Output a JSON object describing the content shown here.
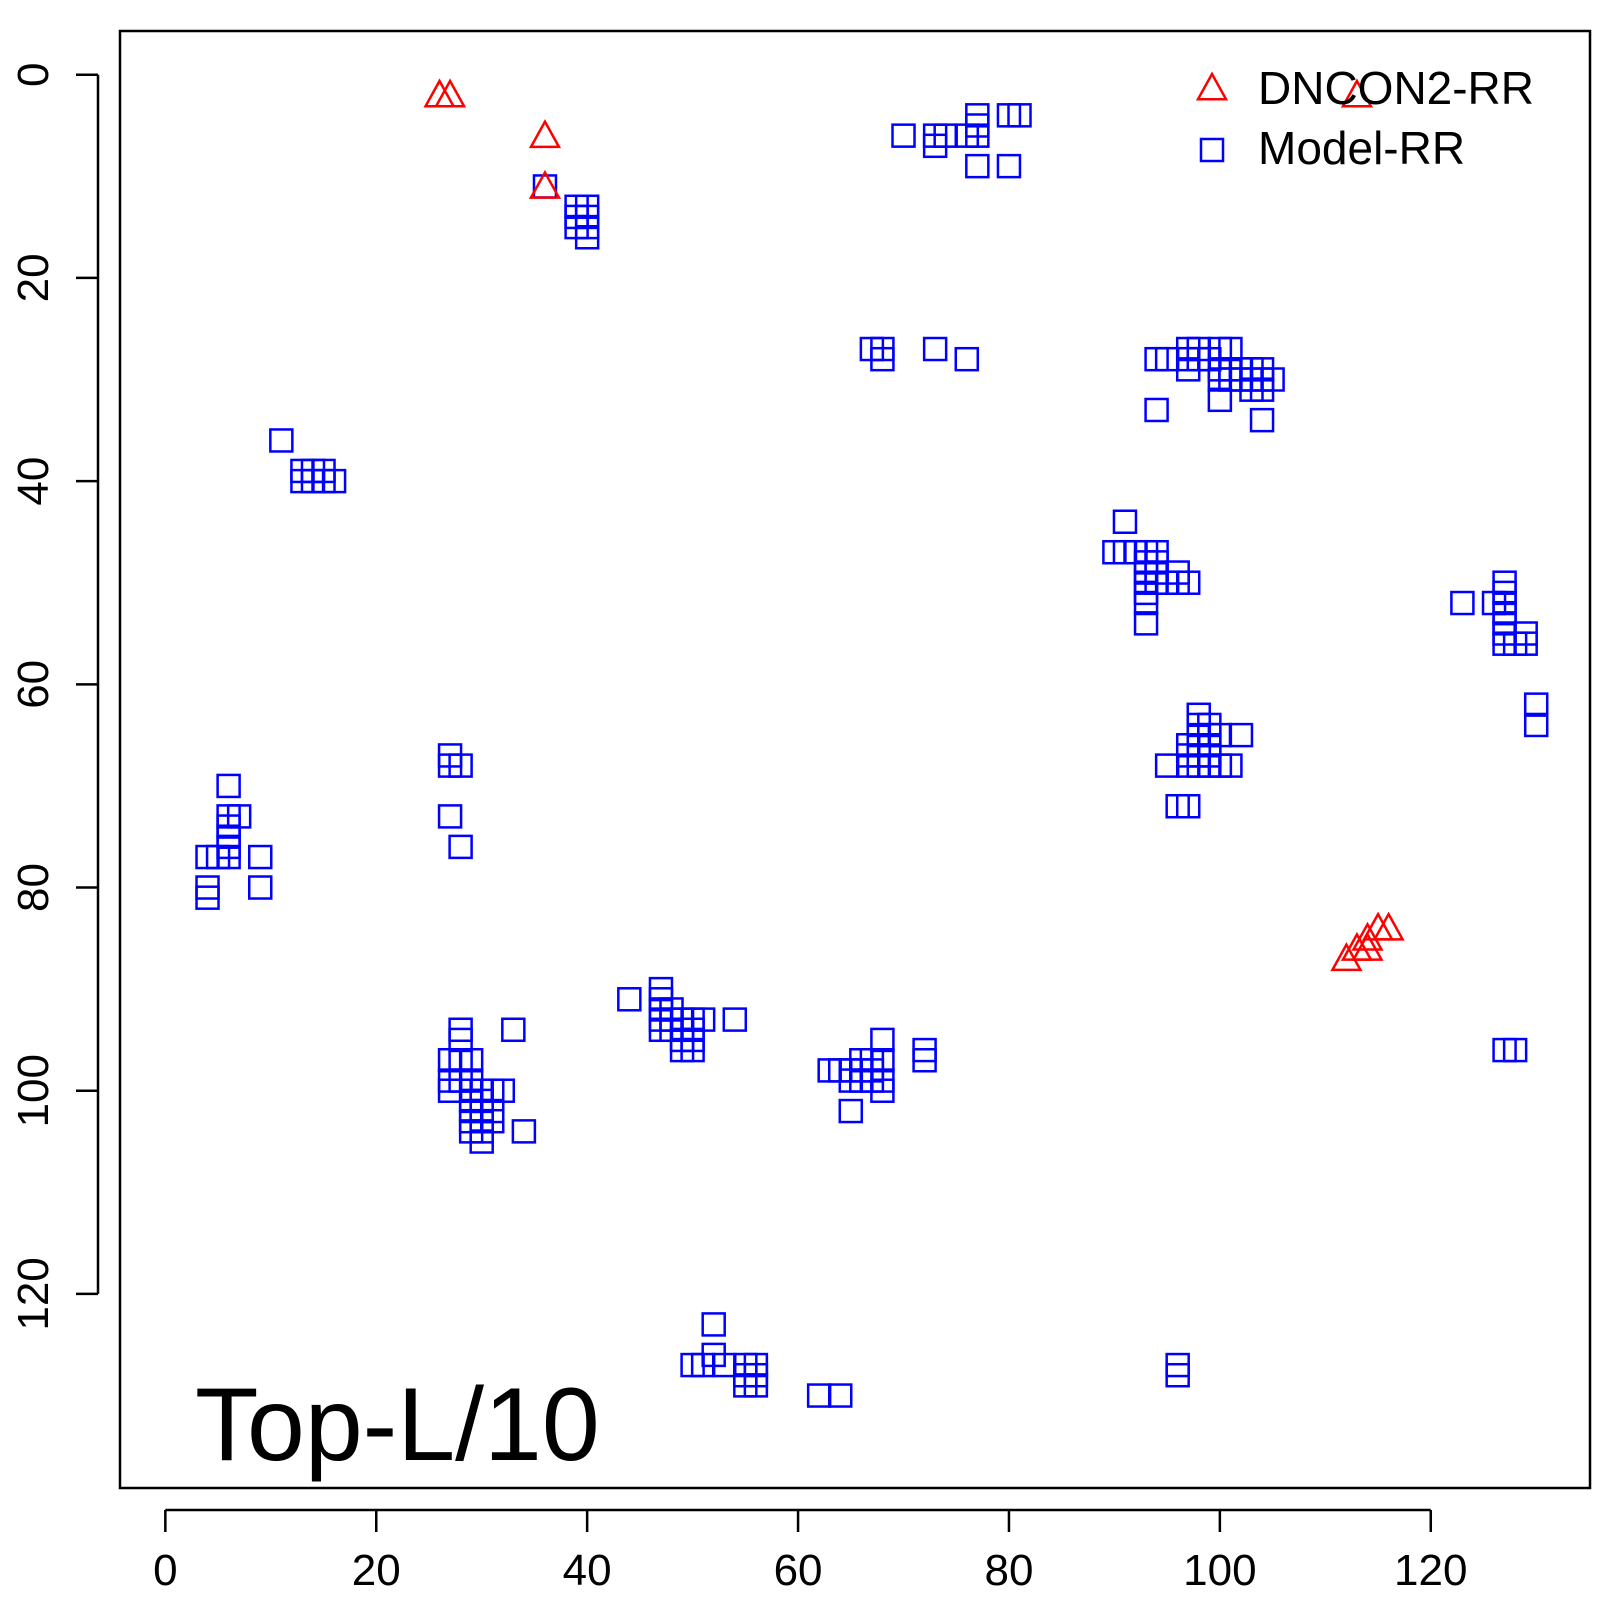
{
  "chart_data": {
    "type": "scatter",
    "title": "",
    "xlabel": "",
    "ylabel": "",
    "xlim": [
      -4.3,
      135.1
    ],
    "ylim": [
      -4.3,
      139.1
    ],
    "y_reversed": true,
    "x_ticks": [
      0,
      20,
      40,
      60,
      80,
      100,
      120
    ],
    "y_ticks": [
      0,
      20,
      40,
      60,
      80,
      100,
      120
    ],
    "grid": false,
    "legend_position": "top-right",
    "annotation": "Top-L/10",
    "series": [
      {
        "name": "DNCON2-RR",
        "marker": "triangle",
        "color": "#ff0000",
        "points": [
          [
            26,
            2
          ],
          [
            27,
            2
          ],
          [
            36,
            6
          ],
          [
            36,
            11
          ],
          [
            113,
            2
          ],
          [
            112,
            87
          ],
          [
            113,
            86
          ],
          [
            114,
            86
          ],
          [
            114,
            85
          ],
          [
            115,
            84
          ],
          [
            116,
            84
          ]
        ]
      },
      {
        "name": "Model-RR",
        "marker": "square",
        "color": "#0000ff",
        "points": [
          [
            36,
            11
          ],
          [
            39,
            13
          ],
          [
            40,
            13
          ],
          [
            39,
            14
          ],
          [
            40,
            14
          ],
          [
            39,
            15
          ],
          [
            40,
            15
          ],
          [
            40,
            16
          ],
          [
            70,
            6
          ],
          [
            73,
            6
          ],
          [
            74,
            6
          ],
          [
            76,
            6
          ],
          [
            77,
            6
          ],
          [
            73,
            7
          ],
          [
            77,
            4
          ],
          [
            77,
            5
          ],
          [
            80,
            4
          ],
          [
            81,
            4
          ],
          [
            77,
            9
          ],
          [
            80,
            9
          ],
          [
            67,
            27
          ],
          [
            68,
            27
          ],
          [
            68,
            28
          ],
          [
            73,
            27
          ],
          [
            76,
            28
          ],
          [
            94,
            28
          ],
          [
            95,
            28
          ],
          [
            97,
            27
          ],
          [
            98,
            27
          ],
          [
            100,
            27
          ],
          [
            101,
            27
          ],
          [
            97,
            28
          ],
          [
            98,
            28
          ],
          [
            99,
            28
          ],
          [
            97,
            29
          ],
          [
            100,
            29
          ],
          [
            101,
            29
          ],
          [
            102,
            29
          ],
          [
            103,
            29
          ],
          [
            104,
            29
          ],
          [
            100,
            30
          ],
          [
            101,
            30
          ],
          [
            102,
            30
          ],
          [
            103,
            30
          ],
          [
            104,
            30
          ],
          [
            105,
            30
          ],
          [
            103,
            31
          ],
          [
            104,
            31
          ],
          [
            100,
            32
          ],
          [
            94,
            33
          ],
          [
            104,
            34
          ],
          [
            11,
            36
          ],
          [
            13,
            39
          ],
          [
            14,
            39
          ],
          [
            15,
            39
          ],
          [
            13,
            40
          ],
          [
            14,
            40
          ],
          [
            15,
            40
          ],
          [
            16,
            40
          ],
          [
            91,
            44
          ],
          [
            90,
            47
          ],
          [
            91,
            47
          ],
          [
            92,
            47
          ],
          [
            93,
            47
          ],
          [
            94,
            47
          ],
          [
            93,
            48
          ],
          [
            94,
            48
          ],
          [
            93,
            49
          ],
          [
            94,
            49
          ],
          [
            96,
            49
          ],
          [
            93,
            50
          ],
          [
            94,
            50
          ],
          [
            95,
            50
          ],
          [
            96,
            50
          ],
          [
            97,
            50
          ],
          [
            93,
            51
          ],
          [
            93,
            52
          ],
          [
            93,
            54
          ],
          [
            123,
            52
          ],
          [
            127,
            50
          ],
          [
            127,
            51
          ],
          [
            126,
            52
          ],
          [
            127,
            52
          ],
          [
            127,
            53
          ],
          [
            127,
            54
          ],
          [
            127,
            55
          ],
          [
            129,
            55
          ],
          [
            127,
            56
          ],
          [
            128,
            56
          ],
          [
            129,
            56
          ],
          [
            130,
            62
          ],
          [
            130,
            64
          ],
          [
            98,
            63
          ],
          [
            98,
            64
          ],
          [
            99,
            64
          ],
          [
            98,
            65
          ],
          [
            99,
            65
          ],
          [
            102,
            65
          ],
          [
            100,
            65
          ],
          [
            97,
            66
          ],
          [
            98,
            66
          ],
          [
            99,
            66
          ],
          [
            97,
            67
          ],
          [
            98,
            67
          ],
          [
            99,
            67
          ],
          [
            95,
            68
          ],
          [
            97,
            68
          ],
          [
            98,
            68
          ],
          [
            99,
            68
          ],
          [
            100,
            68
          ],
          [
            101,
            68
          ],
          [
            96,
            72
          ],
          [
            97,
            72
          ],
          [
            6,
            70
          ],
          [
            6,
            73
          ],
          [
            7,
            73
          ],
          [
            6,
            74
          ],
          [
            6,
            75
          ],
          [
            6,
            76
          ],
          [
            6,
            77
          ],
          [
            4,
            77
          ],
          [
            5,
            77
          ],
          [
            9,
            77
          ],
          [
            4,
            80
          ],
          [
            9,
            80
          ],
          [
            4,
            81
          ],
          [
            27,
            67
          ],
          [
            28,
            68
          ],
          [
            27,
            68
          ],
          [
            27,
            73
          ],
          [
            28,
            76
          ],
          [
            47,
            90
          ],
          [
            47,
            91
          ],
          [
            44,
            91
          ],
          [
            47,
            92
          ],
          [
            48,
            92
          ],
          [
            47,
            93
          ],
          [
            48,
            93
          ],
          [
            49,
            93
          ],
          [
            50,
            93
          ],
          [
            51,
            93
          ],
          [
            54,
            93
          ],
          [
            47,
            94
          ],
          [
            48,
            94
          ],
          [
            49,
            94
          ],
          [
            50,
            94
          ],
          [
            49,
            95
          ],
          [
            50,
            95
          ],
          [
            49,
            96
          ],
          [
            50,
            96
          ],
          [
            28,
            94
          ],
          [
            28,
            95
          ],
          [
            33,
            94
          ],
          [
            27,
            97
          ],
          [
            28,
            97
          ],
          [
            29,
            97
          ],
          [
            27,
            99
          ],
          [
            28,
            99
          ],
          [
            29,
            99
          ],
          [
            27,
            100
          ],
          [
            29,
            100
          ],
          [
            30,
            100
          ],
          [
            31,
            100
          ],
          [
            32,
            100
          ],
          [
            29,
            101
          ],
          [
            30,
            101
          ],
          [
            29,
            102
          ],
          [
            30,
            102
          ],
          [
            31,
            102
          ],
          [
            29,
            103
          ],
          [
            30,
            103
          ],
          [
            31,
            103
          ],
          [
            29,
            104
          ],
          [
            30,
            104
          ],
          [
            34,
            104
          ],
          [
            30,
            105
          ],
          [
            68,
            95
          ],
          [
            72,
            96
          ],
          [
            72,
            97
          ],
          [
            66,
            97
          ],
          [
            67,
            97
          ],
          [
            68,
            97
          ],
          [
            63,
            98
          ],
          [
            64,
            98
          ],
          [
            65,
            98
          ],
          [
            66,
            98
          ],
          [
            67,
            98
          ],
          [
            65,
            99
          ],
          [
            66,
            99
          ],
          [
            67,
            99
          ],
          [
            68,
            99
          ],
          [
            68,
            100
          ],
          [
            65,
            102
          ],
          [
            127,
            96
          ],
          [
            128,
            96
          ],
          [
            52,
            123
          ],
          [
            52,
            126
          ],
          [
            50,
            127
          ],
          [
            51,
            127
          ],
          [
            53,
            127
          ],
          [
            55,
            127
          ],
          [
            56,
            127
          ],
          [
            55,
            128
          ],
          [
            56,
            128
          ],
          [
            55,
            129
          ],
          [
            56,
            129
          ],
          [
            62,
            130
          ],
          [
            64,
            130
          ],
          [
            96,
            127
          ],
          [
            96,
            128
          ]
        ]
      }
    ]
  }
}
